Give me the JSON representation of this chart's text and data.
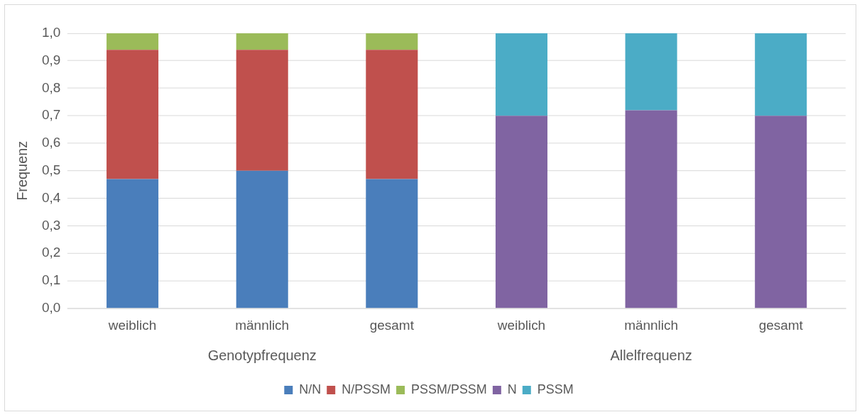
{
  "chart_data": {
    "type": "bar",
    "stacked": true,
    "ylabel": "Frequenz",
    "categories": [
      "weiblich",
      "männlich",
      "gesamt",
      "weiblich",
      "männlich",
      "gesamt"
    ],
    "series": [
      {
        "name": "N/N",
        "color": "#4a7ebb",
        "values": [
          0.47,
          0.5,
          0.47,
          null,
          null,
          null
        ]
      },
      {
        "name": "N/PSSM",
        "color": "#c0504d",
        "values": [
          0.47,
          0.44,
          0.47,
          null,
          null,
          null
        ]
      },
      {
        "name": "PSSM/PSSM",
        "color": "#9bbb59",
        "values": [
          0.06,
          0.06,
          0.06,
          null,
          null,
          null
        ]
      },
      {
        "name": "N",
        "color": "#8064a2",
        "values": [
          null,
          null,
          null,
          0.7,
          0.72,
          0.7
        ]
      },
      {
        "name": "PSSM",
        "color": "#4bacc6",
        "values": [
          null,
          null,
          null,
          0.3,
          0.28,
          0.3
        ]
      }
    ],
    "ylim": [
      0,
      1
    ],
    "yticks": [
      {
        "value": 0,
        "label": "0,0"
      },
      {
        "value": 0.1,
        "label": "0,1"
      },
      {
        "value": 0.2,
        "label": "0,2"
      },
      {
        "value": 0.3,
        "label": "0,3"
      },
      {
        "value": 0.4,
        "label": "0,4"
      },
      {
        "value": 0.5,
        "label": "0,5"
      },
      {
        "value": 0.6,
        "label": "0,6"
      },
      {
        "value": 0.7,
        "label": "0,7"
      },
      {
        "value": 0.8,
        "label": "0,8"
      },
      {
        "value": 0.9,
        "label": "0,9"
      },
      {
        "value": 1,
        "label": "1,0"
      }
    ],
    "annotations": [
      "Genotypfrequenz",
      "Allelfrequenz"
    ],
    "grid": "y",
    "legend": "bottom"
  }
}
